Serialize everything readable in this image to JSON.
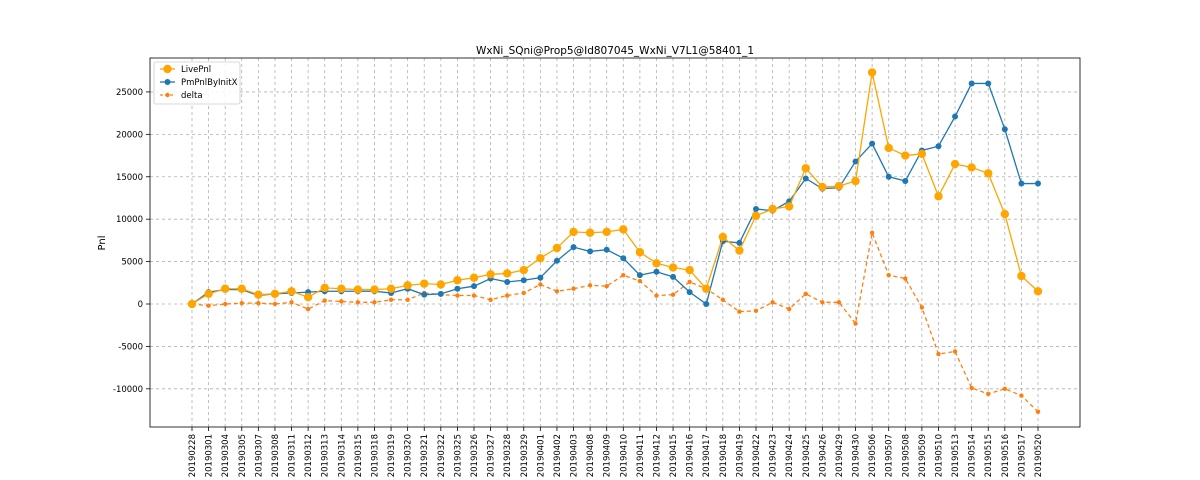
{
  "chart_data": {
    "type": "line",
    "title": "WxNi_SQni@Prop5@Id807045_WxNi_V7L1@58401_1",
    "xlabel": "",
    "ylabel": "Pnl",
    "ylim": [
      -14500,
      29000
    ],
    "yticks": [
      -10000,
      -5000,
      0,
      5000,
      10000,
      15000,
      20000,
      25000
    ],
    "grid": true,
    "legend_position": "top-left",
    "categories": [
      "20190228",
      "20190301",
      "20190304",
      "20190305",
      "20190307",
      "20190308",
      "20190311",
      "20190312",
      "20190313",
      "20190314",
      "20190315",
      "20190318",
      "20190319",
      "20190320",
      "20190321",
      "20190322",
      "20190325",
      "20190326",
      "20190327",
      "20190328",
      "20190329",
      "20190401",
      "20190402",
      "20190403",
      "20190408",
      "20190409",
      "20190410",
      "20190411",
      "20190412",
      "20190415",
      "20190416",
      "20190417",
      "20190418",
      "20190419",
      "20190422",
      "20190423",
      "20190424",
      "20190425",
      "20190426",
      "20190429",
      "20190430",
      "20190506",
      "20190507",
      "20190508",
      "20190509",
      "20190510",
      "20190513",
      "20190514",
      "20190515",
      "20190516",
      "20190517",
      "20190520"
    ],
    "series": [
      {
        "name": "LivePnl",
        "color": "#ffa500",
        "style": "solid",
        "marker": "large-circle",
        "values": [
          0,
          1200,
          1800,
          1800,
          1100,
          1200,
          1500,
          800,
          1900,
          1800,
          1700,
          1700,
          1800,
          2200,
          2400,
          2300,
          2800,
          3100,
          3500,
          3600,
          4000,
          5400,
          6600,
          8500,
          8400,
          8500,
          8800,
          6100,
          4800,
          4300,
          4000,
          1800,
          7900,
          6300,
          10400,
          11200,
          11500,
          16000,
          13800,
          13900,
          14500,
          27300,
          18400,
          17500,
          17700,
          12700,
          16500,
          16100,
          15400,
          10600,
          3300,
          1500
        ]
      },
      {
        "name": "PmPnlByInitX",
        "color": "#1f77b4",
        "style": "solid",
        "marker": "circle",
        "values": [
          0,
          1400,
          1700,
          1700,
          1000,
          1200,
          1300,
          1400,
          1500,
          1500,
          1500,
          1500,
          1300,
          1800,
          1100,
          1200,
          1800,
          2100,
          3000,
          2600,
          2800,
          3100,
          5100,
          6700,
          6200,
          6400,
          5400,
          3400,
          3800,
          3200,
          1400,
          0,
          7400,
          7200,
          11200,
          11000,
          12100,
          14800,
          13600,
          13700,
          16800,
          18900,
          15000,
          14500,
          18100,
          18600,
          22100,
          26000,
          26000,
          20600,
          14200,
          14200
        ]
      },
      {
        "name": "delta",
        "color": "#ff7f0e",
        "style": "dashed",
        "marker": "small-circle",
        "values": [
          0,
          -200,
          0,
          100,
          100,
          0,
          200,
          -600,
          400,
          300,
          200,
          200,
          500,
          500,
          1300,
          1100,
          1000,
          1000,
          500,
          1000,
          1300,
          2300,
          1500,
          1800,
          2200,
          2100,
          3400,
          2700,
          1000,
          1100,
          2600,
          1800,
          500,
          -900,
          -800,
          200,
          -600,
          1200,
          200,
          200,
          -2300,
          8400,
          3400,
          3000,
          -400,
          -5900,
          -5600,
          -9900,
          -10600,
          -10000,
          -10800,
          -12700
        ]
      }
    ]
  }
}
